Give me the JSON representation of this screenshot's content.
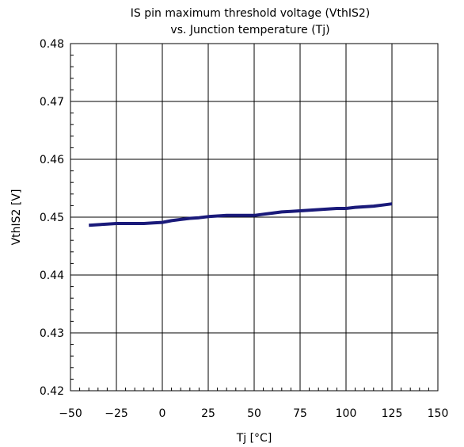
{
  "chart_data": {
    "type": "line",
    "title_line1": "IS pin maximum threshold voltage (VthIS2)",
    "title_line2": "vs. Junction temperature (Tj)",
    "xlabel": "Tj [°C]",
    "ylabel": "VthIS2 [V]",
    "xlim": [
      -50,
      150
    ],
    "ylim": [
      0.42,
      0.48
    ],
    "xticks": [
      -50,
      -25,
      0,
      25,
      50,
      75,
      100,
      125,
      150
    ],
    "xtick_labels": [
      "−50",
      "−25",
      "0",
      "25",
      "50",
      "75",
      "100",
      "125",
      "150"
    ],
    "yticks": [
      0.42,
      0.43,
      0.44,
      0.45,
      0.46,
      0.47,
      0.48
    ],
    "ytick_labels": [
      "0.42",
      "0.43",
      "0.44",
      "0.45",
      "0.46",
      "0.47",
      "0.48"
    ],
    "grid": true,
    "line_color": "#1a1a7a",
    "series": [
      {
        "x": [
          -40,
          -35,
          -30,
          -25,
          -20,
          -15,
          -10,
          -5,
          0,
          5,
          10,
          15,
          20,
          25,
          30,
          35,
          40,
          45,
          50,
          55,
          60,
          65,
          70,
          75,
          80,
          85,
          90,
          95,
          100,
          105,
          110,
          115,
          120,
          125
        ],
        "values": [
          0.4486,
          0.4487,
          0.4488,
          0.4489,
          0.4489,
          0.4489,
          0.4489,
          0.449,
          0.4491,
          0.4494,
          0.4496,
          0.4498,
          0.4499,
          0.4501,
          0.4502,
          0.4503,
          0.4503,
          0.4503,
          0.4503,
          0.4505,
          0.4507,
          0.4509,
          0.451,
          0.4511,
          0.4512,
          0.4513,
          0.4514,
          0.4515,
          0.4515,
          0.4517,
          0.4518,
          0.4519,
          0.4521,
          0.4523
        ]
      }
    ]
  }
}
